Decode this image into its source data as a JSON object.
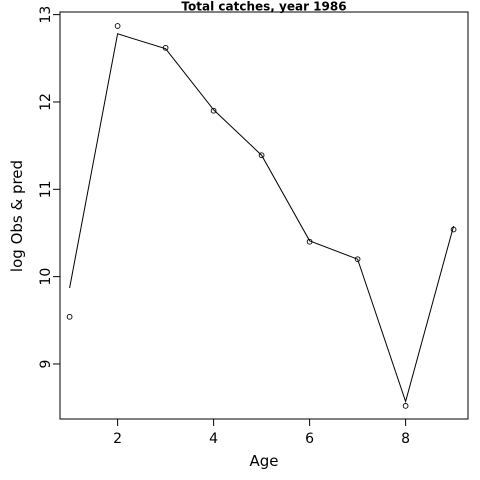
{
  "chart_data": {
    "type": "line",
    "title": "Total catches, year 1986",
    "xlabel": "Age",
    "ylabel": "log Obs & pred",
    "xlim": [
      0.8,
      9.3
    ],
    "ylim": [
      8.37,
      13.03
    ],
    "x_ticks": [
      2,
      4,
      6,
      8
    ],
    "y_ticks": [
      9,
      10,
      11,
      12,
      13
    ],
    "grid": false,
    "series": [
      {
        "style": "points",
        "x": [
          1,
          2,
          3,
          4,
          5,
          6,
          7,
          8,
          9
        ],
        "y": [
          9.54,
          12.87,
          12.62,
          11.9,
          11.39,
          10.4,
          10.2,
          8.52,
          10.54
        ]
      },
      {
        "style": "line",
        "x": [
          1,
          2,
          3,
          4,
          5,
          6,
          7,
          8,
          9
        ],
        "y": [
          9.87,
          12.78,
          12.61,
          11.91,
          11.39,
          10.41,
          10.2,
          8.57,
          10.58
        ]
      }
    ]
  }
}
